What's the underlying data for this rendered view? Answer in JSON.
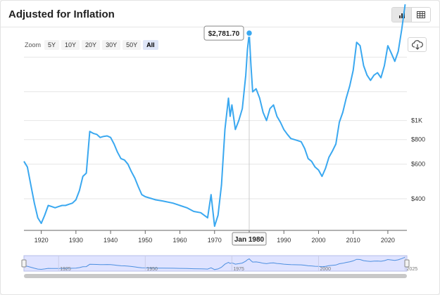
{
  "header": {
    "title": "Adjusted for Inflation",
    "bar_chart_icon": "bar-chart-icon",
    "table_icon": "table-icon"
  },
  "zoom": {
    "label": "Zoom",
    "options": [
      "5Y",
      "10Y",
      "20Y",
      "30Y",
      "50Y",
      "All"
    ],
    "active": "All"
  },
  "download_icon": "cloud-download-icon",
  "chart_data": {
    "type": "line",
    "title": "",
    "xlabel": "",
    "ylabel": "",
    "x_ticks": [
      1920,
      1930,
      1940,
      1950,
      1960,
      1970,
      1980,
      1990,
      2000,
      2010,
      2020
    ],
    "y_ticks": [
      "$400",
      "$600",
      "$800",
      "$1K"
    ],
    "y_tick_values": [
      400,
      600,
      800,
      1000
    ],
    "xlim": [
      1915,
      2025.5
    ],
    "ylim": [
      220,
      5000
    ],
    "yscale": "log",
    "grid": true,
    "line_color": "#3aa8f0",
    "series": [
      {
        "x": [
          1915,
          1916,
          1917,
          1918,
          1919,
          1920,
          1921,
          1922,
          1923,
          1924,
          1925,
          1926,
          1927,
          1928,
          1929,
          1930,
          1931,
          1932,
          1933,
          1934,
          1935,
          1936,
          1937,
          1938,
          1939,
          1940,
          1941,
          1942,
          1943,
          1944,
          1945,
          1946,
          1947,
          1948,
          1949,
          1950,
          1951,
          1952,
          1953,
          1955,
          1958,
          1960,
          1962,
          1964,
          1966,
          1967,
          1968,
          1969,
          1970,
          1971,
          1972,
          1973,
          1974,
          1974.5,
          1975,
          1976,
          1977,
          1978,
          1979,
          1979.5,
          1980,
          1980.5,
          1981,
          1982,
          1983,
          1984,
          1985,
          1986,
          1987,
          1988,
          1989,
          1990,
          1991,
          1992,
          1993,
          1994,
          1995,
          1996,
          1997,
          1998,
          1999,
          2000,
          2001,
          2002,
          2003,
          2004,
          2005,
          2006,
          2007,
          2008,
          2009,
          2010,
          2011,
          2012,
          2013,
          2014,
          2015,
          2016,
          2017,
          2018,
          2019,
          2020,
          2021,
          2022,
          2023,
          2024,
          2025
        ],
        "y": [
          620,
          580,
          470,
          380,
          320,
          300,
          330,
          370,
          365,
          360,
          365,
          370,
          370,
          375,
          380,
          395,
          440,
          520,
          540,
          880,
          860,
          850,
          820,
          830,
          835,
          820,
          760,
          690,
          640,
          630,
          600,
          550,
          510,
          460,
          420,
          410,
          405,
          400,
          395,
          390,
          380,
          370,
          360,
          345,
          340,
          330,
          320,
          420,
          290,
          330,
          470,
          900,
          1300,
          1050,
          1200,
          900,
          1000,
          1150,
          1700,
          2300,
          2781.7,
          1900,
          1400,
          1450,
          1300,
          1100,
          1000,
          1150,
          1200,
          1050,
          980,
          900,
          850,
          810,
          800,
          790,
          780,
          720,
          640,
          620,
          580,
          560,
          520,
          570,
          650,
          700,
          760,
          980,
          1100,
          1300,
          1500,
          1800,
          2500,
          2400,
          1900,
          1700,
          1600,
          1700,
          1750,
          1650,
          1900,
          2400,
          2200,
          2000,
          2250,
          2900,
          3900
        ]
      }
    ],
    "tooltip": {
      "value_label": "$2,781.70",
      "date_label": "Jan 1980",
      "x": 1980,
      "y": 2781.7
    },
    "navigator": {
      "labels": [
        1925,
        1950,
        1975,
        2000,
        2025
      ]
    }
  }
}
